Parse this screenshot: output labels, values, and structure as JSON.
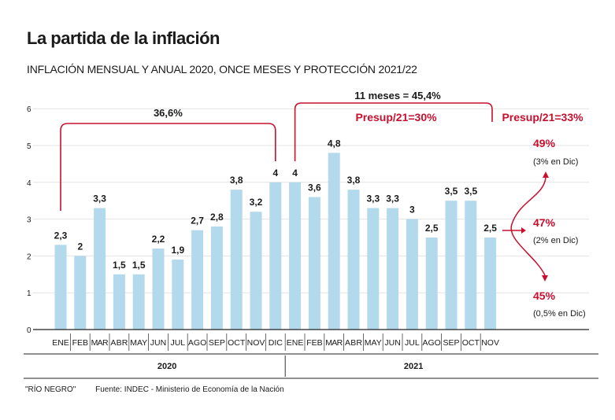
{
  "header": {
    "title": "La partida de la inflación",
    "subtitle": "INFLACIÓN MENSUAL Y ANUAL 2020, ONCE MESES Y PROTECCIÓN 2021/22"
  },
  "footer": {
    "credit": "\"RÍO NEGRO\"",
    "source": "Fuente: INDEC - Ministerio de Economía de la Nación"
  },
  "colors": {
    "bar": "#b3d9ec",
    "accent": "#c8102e",
    "grid": "#e3e3e3",
    "text": "#1a1a1a"
  },
  "chart_data": {
    "type": "bar",
    "title": "La partida de la inflación",
    "subtitle": "INFLACIÓN MENSUAL Y ANUAL 2020, ONCE MESES Y PROTECCIÓN 2021/22",
    "xlabel": "",
    "ylabel": "",
    "ylim": [
      0,
      6
    ],
    "yticks": [
      0,
      1,
      2,
      3,
      4,
      5,
      6
    ],
    "grid": true,
    "categories": [
      "ENE",
      "FEB",
      "MAR",
      "ABR",
      "MAY",
      "JUN",
      "JUL",
      "AGO",
      "SEP",
      "OCT",
      "NOV",
      "DIC",
      "ENE",
      "FEB",
      "MAR",
      "ABR",
      "MAY",
      "JUN",
      "JUL",
      "AGO",
      "SEP",
      "OCT",
      "NOV"
    ],
    "values": [
      2.3,
      2,
      3.3,
      1.5,
      1.5,
      2.2,
      1.9,
      2.7,
      2.8,
      3.8,
      3.2,
      4,
      4,
      3.6,
      4.8,
      3.8,
      3.3,
      3.3,
      3,
      2.5,
      3.5,
      3.5,
      2.5
    ],
    "value_labels": [
      "2,3",
      "2",
      "3,3",
      "1,5",
      "1,5",
      "2,2",
      "1,9",
      "2,7",
      "2,8",
      "3,8",
      "3,2",
      "4",
      "4",
      "3,6",
      "4,8",
      "3,8",
      "3,3",
      "3,3",
      "3",
      "2,5",
      "3,5",
      "3,5",
      "2,5"
    ],
    "year_groups": [
      {
        "label": "2020",
        "count": 12
      },
      {
        "label": "2021",
        "count": 11
      }
    ],
    "annotations": {
      "bracket_2020": {
        "label": "36,6%",
        "from_index": 0,
        "to_index": 11
      },
      "bracket_2021": {
        "label": "11 meses = 45,4%",
        "from_index": 12,
        "to_index": 22
      },
      "budget_2021": "Presup/21=30%",
      "budget_2021_alt": "Presup/21=33%",
      "projections": [
        {
          "value": "49%",
          "note": "(3% en Dic)",
          "level": 4.9
        },
        {
          "value": "47%",
          "note": "(2% en Dic)",
          "level": 2.9
        },
        {
          "value": "45%",
          "note": "(0,5% en Dic)",
          "level": 0.9
        }
      ]
    }
  }
}
